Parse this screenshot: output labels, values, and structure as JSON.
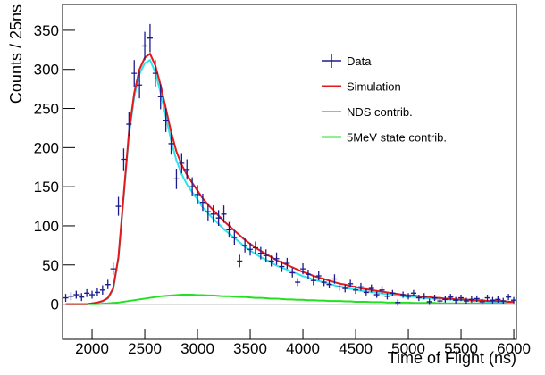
{
  "chart_data": {
    "type": "line",
    "xlabel": "Time of Flight (ns)",
    "ylabel": "Counts / 25ns",
    "x": [
      1750,
      1800,
      1850,
      1900,
      1950,
      2000,
      2050,
      2100,
      2150,
      2200,
      2250,
      2300,
      2350,
      2400,
      2450,
      2500,
      2550,
      2600,
      2650,
      2700,
      2750,
      2800,
      2850,
      2900,
      2950,
      3000,
      3050,
      3100,
      3150,
      3200,
      3250,
      3300,
      3350,
      3400,
      3450,
      3500,
      3550,
      3600,
      3650,
      3700,
      3750,
      3800,
      3850,
      3900,
      3950,
      4000,
      4050,
      4100,
      4150,
      4200,
      4250,
      4300,
      4350,
      4400,
      4450,
      4500,
      4550,
      4600,
      4650,
      4700,
      4750,
      4800,
      4850,
      4900,
      4950,
      5000,
      5050,
      5100,
      5150,
      5200,
      5250,
      5300,
      5350,
      5400,
      5450,
      5500,
      5550,
      5600,
      5650,
      5700,
      5750,
      5800,
      5850,
      5900,
      5950,
      6000
    ],
    "series": [
      {
        "name": "Data",
        "color": "#1c1c8f",
        "values": [
          8,
          10,
          12,
          9,
          14,
          12,
          15,
          18,
          25,
          45,
          125,
          185,
          230,
          295,
          280,
          330,
          340,
          295,
          265,
          235,
          205,
          160,
          180,
          172,
          150,
          140,
          130,
          118,
          115,
          110,
          115,
          95,
          85,
          55,
          75,
          70,
          72,
          65,
          62,
          55,
          58,
          48,
          52,
          40,
          28,
          45,
          38,
          30,
          36,
          28,
          25,
          32,
          22,
          20,
          26,
          18,
          22,
          15,
          20,
          12,
          18,
          10,
          14,
          2,
          12,
          10,
          14,
          8,
          10,
          3,
          8,
          4,
          6,
          9,
          5,
          8,
          4,
          6,
          7,
          3,
          8,
          5,
          6,
          4,
          9,
          5
        ],
        "errors": [
          5,
          5,
          5,
          5,
          5,
          5,
          5,
          6,
          6,
          8,
          12,
          14,
          15,
          17,
          17,
          18,
          18,
          17,
          16,
          15,
          14,
          13,
          13,
          13,
          12,
          12,
          11,
          11,
          11,
          10,
          11,
          10,
          9,
          8,
          9,
          8,
          8,
          8,
          8,
          7,
          8,
          7,
          7,
          6,
          5,
          7,
          6,
          6,
          6,
          5,
          5,
          6,
          5,
          5,
          5,
          5,
          5,
          4,
          5,
          4,
          5,
          4,
          4,
          4,
          4,
          4,
          4,
          4,
          4,
          4,
          4,
          4,
          4,
          4,
          4,
          4,
          4,
          4,
          4,
          4,
          4,
          4,
          4,
          4,
          4,
          4
        ]
      },
      {
        "name": "Simulation",
        "color": "#e3191c",
        "values": [
          0,
          0,
          0,
          0,
          0,
          1,
          2,
          4,
          8,
          20,
          60,
          140,
          220,
          270,
          300,
          315,
          320,
          305,
          280,
          250,
          220,
          195,
          178,
          165,
          155,
          145,
          135,
          127,
          120,
          113,
          106,
          100,
          94,
          88,
          82,
          77,
          72,
          68,
          64,
          60,
          56,
          53,
          50,
          47,
          44,
          41,
          39,
          36,
          34,
          32,
          30,
          28,
          26,
          25,
          23,
          22,
          20,
          19,
          18,
          17,
          16,
          15,
          14,
          13,
          12,
          11,
          11,
          10,
          9,
          9,
          8,
          8,
          7,
          7,
          6,
          6,
          6,
          5,
          5,
          5,
          4,
          4,
          4,
          4,
          3,
          3
        ]
      },
      {
        "name": "NDS contrib.",
        "color": "#2fe3ef",
        "values": [
          0,
          0,
          0,
          0,
          0,
          1,
          2,
          3.5,
          7,
          18.5,
          58,
          137,
          216,
          265,
          294,
          308,
          312,
          296,
          270,
          239.5,
          209,
          183.5,
          166,
          153,
          143,
          133.5,
          123.5,
          116,
          109,
          102.5,
          96,
          90,
          84.5,
          79,
          73,
          68.5,
          64,
          60,
          56.5,
          53,
          49,
          46.5,
          44,
          41,
          38.5,
          35.5,
          34,
          31,
          29.5,
          27.5,
          26,
          24,
          22,
          21.5,
          19.5,
          19,
          17,
          16,
          15.5,
          14.5,
          13.5,
          13,
          12,
          11,
          10,
          9,
          9.5,
          8.5,
          7.5,
          7.5,
          6.5,
          7,
          6,
          6,
          5,
          5,
          5,
          4,
          4,
          4,
          3,
          3,
          3,
          3,
          2,
          2
        ]
      },
      {
        "name": "5MeV state contrib.",
        "color": "#22e022",
        "values": [
          0,
          0,
          0,
          0,
          0,
          0,
          0,
          0.5,
          1,
          1.5,
          2,
          3,
          4,
          5,
          6,
          7,
          8,
          9,
          10,
          10.5,
          11,
          11.5,
          12,
          12,
          12,
          11.5,
          11.5,
          11,
          11,
          10.5,
          10,
          10,
          9.5,
          9,
          9,
          8.5,
          8,
          8,
          7.5,
          7,
          7,
          6.5,
          6,
          6,
          5.5,
          5.5,
          5,
          5,
          4.5,
          4.5,
          4,
          4,
          4,
          3.5,
          3.5,
          3,
          3,
          3,
          2.5,
          2.5,
          2.5,
          2,
          2,
          2,
          2,
          2,
          1.5,
          1.5,
          1.5,
          1.5,
          1.5,
          1,
          1,
          1,
          1,
          1,
          1,
          1,
          1,
          1,
          1,
          1,
          1,
          1,
          1,
          1
        ]
      }
    ],
    "xlim": [
      1720,
      6025
    ],
    "ylim": [
      -45,
      383
    ],
    "xticks": [
      2000,
      2500,
      3000,
      3500,
      4000,
      4500,
      5000,
      5500,
      6000
    ],
    "yticks": [
      0,
      50,
      100,
      150,
      200,
      250,
      300,
      350
    ],
    "legend": "top-right"
  }
}
